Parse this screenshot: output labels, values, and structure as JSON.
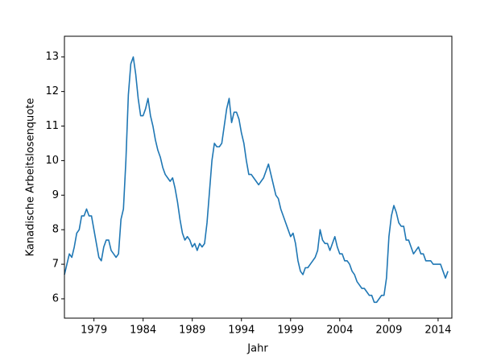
{
  "chart_data": {
    "type": "line",
    "x_label": "Jahr",
    "y_label": "Kanadische Arbeitslosenquote",
    "color": "#1f77b4",
    "xlim": [
      1976,
      2015.4
    ],
    "ylim": [
      5.44,
      13.6
    ],
    "xticks": [
      1979,
      1984,
      1989,
      1994,
      1999,
      2004,
      2009,
      2014
    ],
    "yticks": [
      6,
      7,
      8,
      9,
      10,
      11,
      12,
      13
    ],
    "x": [
      1976,
      1976.25,
      1976.5,
      1976.75,
      1977,
      1977.25,
      1977.5,
      1977.75,
      1978,
      1978.25,
      1978.5,
      1978.75,
      1979,
      1979.25,
      1979.5,
      1979.75,
      1980,
      1980.25,
      1980.5,
      1980.75,
      1981,
      1981.25,
      1981.5,
      1981.75,
      1982,
      1982.25,
      1982.5,
      1982.75,
      1983,
      1983.25,
      1983.5,
      1983.75,
      1984,
      1984.25,
      1984.5,
      1984.75,
      1985,
      1985.25,
      1985.5,
      1985.75,
      1986,
      1986.25,
      1986.5,
      1986.75,
      1987,
      1987.25,
      1987.5,
      1987.75,
      1988,
      1988.25,
      1988.5,
      1988.75,
      1989,
      1989.25,
      1989.5,
      1989.75,
      1990,
      1990.25,
      1990.5,
      1990.75,
      1991,
      1991.25,
      1991.5,
      1991.75,
      1992,
      1992.25,
      1992.5,
      1992.75,
      1993,
      1993.25,
      1993.5,
      1993.75,
      1994,
      1994.25,
      1994.5,
      1994.75,
      1995,
      1995.25,
      1995.5,
      1995.75,
      1996,
      1996.25,
      1996.5,
      1996.75,
      1997,
      1997.25,
      1997.5,
      1997.75,
      1998,
      1998.25,
      1998.5,
      1998.75,
      1999,
      1999.25,
      1999.5,
      1999.75,
      2000,
      2000.25,
      2000.5,
      2000.75,
      2001,
      2001.25,
      2001.5,
      2001.75,
      2002,
      2002.25,
      2002.5,
      2002.75,
      2003,
      2003.25,
      2003.5,
      2003.75,
      2004,
      2004.25,
      2004.5,
      2004.75,
      2005,
      2005.25,
      2005.5,
      2005.75,
      2006,
      2006.25,
      2006.5,
      2006.75,
      2007,
      2007.25,
      2007.5,
      2007.75,
      2008,
      2008.25,
      2008.5,
      2008.75,
      2009,
      2009.25,
      2009.5,
      2009.75,
      2010,
      2010.25,
      2010.5,
      2010.75,
      2011,
      2011.25,
      2011.5,
      2011.75,
      2012,
      2012.25,
      2012.5,
      2012.75,
      2013,
      2013.25,
      2013.5,
      2013.75,
      2014,
      2014.25,
      2014.5,
      2014.75,
      2015
    ],
    "values": [
      6.7,
      7.0,
      7.3,
      7.2,
      7.5,
      7.9,
      8.0,
      8.4,
      8.4,
      8.6,
      8.4,
      8.4,
      8.0,
      7.6,
      7.2,
      7.1,
      7.5,
      7.7,
      7.7,
      7.4,
      7.3,
      7.2,
      7.3,
      8.3,
      8.6,
      10.0,
      11.9,
      12.8,
      13.0,
      12.5,
      11.8,
      11.3,
      11.3,
      11.5,
      11.8,
      11.3,
      11.0,
      10.6,
      10.3,
      10.1,
      9.8,
      9.6,
      9.5,
      9.4,
      9.5,
      9.2,
      8.8,
      8.3,
      7.9,
      7.7,
      7.8,
      7.7,
      7.5,
      7.6,
      7.4,
      7.6,
      7.5,
      7.6,
      8.2,
      9.1,
      10.0,
      10.5,
      10.4,
      10.4,
      10.5,
      11.0,
      11.5,
      11.8,
      11.1,
      11.4,
      11.4,
      11.2,
      10.8,
      10.5,
      10.0,
      9.6,
      9.6,
      9.5,
      9.4,
      9.3,
      9.4,
      9.5,
      9.7,
      9.9,
      9.6,
      9.3,
      9.0,
      8.9,
      8.6,
      8.4,
      8.2,
      8.0,
      7.8,
      7.9,
      7.6,
      7.1,
      6.8,
      6.7,
      6.9,
      6.9,
      7.0,
      7.1,
      7.2,
      7.4,
      8.0,
      7.7,
      7.6,
      7.6,
      7.4,
      7.6,
      7.8,
      7.5,
      7.3,
      7.3,
      7.1,
      7.1,
      7.0,
      6.8,
      6.7,
      6.5,
      6.4,
      6.3,
      6.3,
      6.2,
      6.1,
      6.1,
      5.9,
      5.9,
      6.0,
      6.1,
      6.1,
      6.6,
      7.8,
      8.4,
      8.7,
      8.5,
      8.2,
      8.1,
      8.1,
      7.7,
      7.7,
      7.5,
      7.3,
      7.4,
      7.5,
      7.3,
      7.3,
      7.1,
      7.1,
      7.1,
      7.0,
      7.0,
      7.0,
      7.0,
      6.8,
      6.6,
      6.8
    ]
  }
}
